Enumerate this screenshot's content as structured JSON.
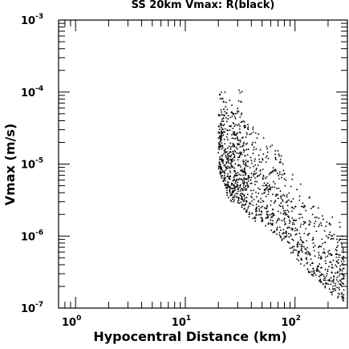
{
  "chart_data": {
    "type": "scatter",
    "title": "SS 20km Vmax: R(black)",
    "xlabel": "Hypocentral Distance (km)",
    "ylabel": "Vmax (m/s)",
    "xscale": "log",
    "yscale": "log",
    "xlim": [
      0.7,
      300
    ],
    "ylim": [
      1e-07,
      0.001
    ],
    "grid": false,
    "legend": "none",
    "x_tick_labels": [
      {
        "value": 1,
        "base": "10",
        "exp": "0"
      },
      {
        "value": 10,
        "base": "10",
        "exp": "1"
      },
      {
        "value": 100,
        "base": "10",
        "exp": "2"
      }
    ],
    "y_tick_labels": [
      {
        "value": 1e-07,
        "base": "10",
        "exp": "-7"
      },
      {
        "value": 1e-06,
        "base": "10",
        "exp": "-6"
      },
      {
        "value": 1e-05,
        "base": "10",
        "exp": "-5"
      },
      {
        "value": 0.0001,
        "base": "10",
        "exp": "-4"
      },
      {
        "value": 0.001,
        "base": "10",
        "exp": "-3"
      }
    ],
    "series": [
      {
        "color": "#000000",
        "marker": "triangle",
        "envelope": [
          {
            "x": 20,
            "y_upper": 0.0001,
            "y_lower": 8e-06
          },
          {
            "x": 22,
            "y_upper": 0.00012,
            "y_lower": 6e-06
          },
          {
            "x": 25,
            "y_upper": 0.0001,
            "y_lower": 3e-06
          },
          {
            "x": 28,
            "y_upper": 6e-05,
            "y_lower": 3e-06
          },
          {
            "x": 32,
            "y_upper": 0.00014,
            "y_lower": 2.5e-06
          },
          {
            "x": 36,
            "y_upper": 5e-05,
            "y_lower": 2e-06
          },
          {
            "x": 45,
            "y_upper": 3e-05,
            "y_lower": 1.5e-06
          },
          {
            "x": 60,
            "y_upper": 2e-05,
            "y_lower": 1.2e-06
          },
          {
            "x": 80,
            "y_upper": 1.5e-05,
            "y_lower": 8e-07
          },
          {
            "x": 110,
            "y_upper": 6e-06,
            "y_lower": 4e-07
          },
          {
            "x": 160,
            "y_upper": 3e-06,
            "y_lower": 2.5e-07
          },
          {
            "x": 220,
            "y_upper": 2e-06,
            "y_lower": 1.5e-07
          },
          {
            "x": 280,
            "y_upper": 1.5e-06,
            "y_lower": 1.2e-07
          }
        ]
      }
    ]
  }
}
